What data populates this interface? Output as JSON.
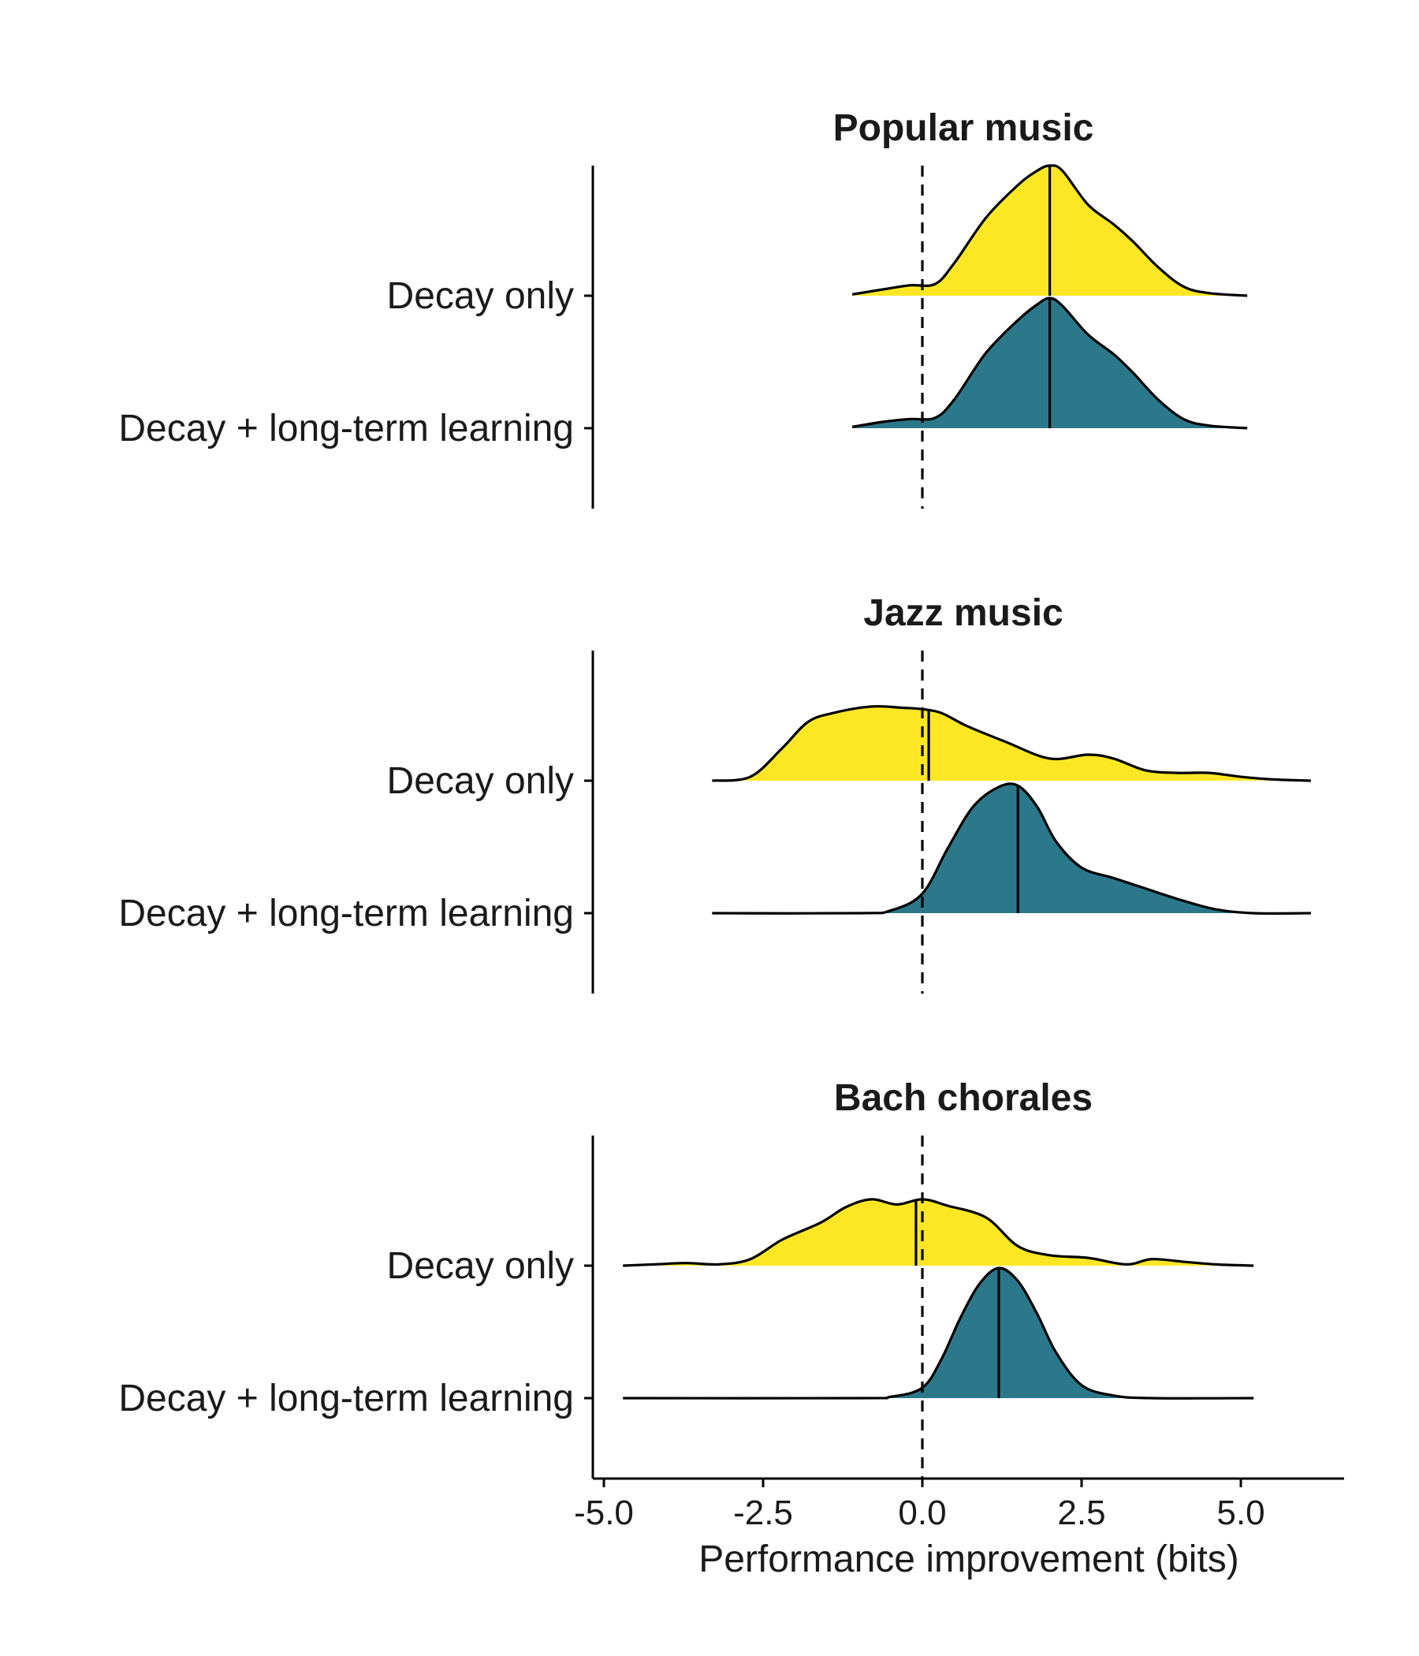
{
  "chart_data": {
    "type": "ridgeline",
    "xlabel": "Performance improvement (bits)",
    "xlim": [
      -5.0,
      6.5
    ],
    "x_ticks": [
      "-5.0",
      "-2.5",
      "0.0",
      "2.5",
      "5.0"
    ],
    "x_tick_values": [
      -5.0,
      -2.5,
      0.0,
      2.5,
      5.0
    ],
    "reference_line_x": 0.0,
    "categories": [
      "Decay only",
      "Decay + long-term learning"
    ],
    "series_colors": {
      "Decay only": "#FDE725",
      "Decay + long-term learning": "#2B788A"
    },
    "panels": [
      {
        "title": "Popular music",
        "series": [
          {
            "name": "Decay only",
            "median": 2.0,
            "x": [
              -1.1,
              -0.6,
              -0.2,
              0.2,
              0.5,
              1.0,
              1.5,
              1.8,
              2.0,
              2.2,
              2.6,
              3.0,
              3.3,
              3.7,
              4.1,
              4.5,
              5.1
            ],
            "density": [
              0.01,
              0.05,
              0.08,
              0.09,
              0.25,
              0.6,
              0.85,
              0.96,
              1.0,
              0.96,
              0.7,
              0.55,
              0.42,
              0.22,
              0.07,
              0.02,
              0.0
            ]
          },
          {
            "name": "Decay + long-term learning",
            "median": 2.0,
            "x": [
              -1.1,
              -0.6,
              -0.2,
              0.2,
              0.5,
              1.0,
              1.5,
              1.8,
              2.0,
              2.2,
              2.6,
              3.0,
              3.3,
              3.7,
              4.1,
              4.5,
              5.1
            ],
            "density": [
              0.01,
              0.05,
              0.07,
              0.08,
              0.22,
              0.58,
              0.83,
              0.95,
              1.0,
              0.94,
              0.72,
              0.57,
              0.43,
              0.22,
              0.07,
              0.02,
              0.0
            ]
          }
        ]
      },
      {
        "title": "Jazz music",
        "series": [
          {
            "name": "Decay only",
            "median": 0.1,
            "x": [
              -3.3,
              -2.7,
              -2.2,
              -1.8,
              -1.4,
              -0.8,
              -0.3,
              0.0,
              0.3,
              0.7,
              1.3,
              2.0,
              2.6,
              3.0,
              3.5,
              4.0,
              4.5,
              5.0,
              5.5,
              6.1
            ],
            "density": [
              0.0,
              0.03,
              0.25,
              0.45,
              0.52,
              0.57,
              0.56,
              0.55,
              0.52,
              0.42,
              0.3,
              0.17,
              0.2,
              0.17,
              0.08,
              0.06,
              0.06,
              0.03,
              0.01,
              0.0
            ]
          },
          {
            "name": "Decay + long-term learning",
            "median": 1.5,
            "x": [
              -3.3,
              -1.0,
              -0.5,
              0.0,
              0.4,
              0.8,
              1.2,
              1.5,
              1.8,
              2.1,
              2.5,
              3.0,
              3.5,
              4.0,
              4.6,
              5.2,
              6.1
            ],
            "density": [
              0.0,
              0.0,
              0.02,
              0.15,
              0.5,
              0.82,
              0.97,
              0.98,
              0.82,
              0.55,
              0.35,
              0.27,
              0.19,
              0.11,
              0.03,
              0.0,
              0.0
            ]
          }
        ]
      },
      {
        "title": "Bach chorales",
        "series": [
          {
            "name": "Decay only",
            "median": -0.1,
            "x": [
              -4.7,
              -4.2,
              -3.7,
              -3.2,
              -2.7,
              -2.2,
              -1.6,
              -1.2,
              -0.8,
              -0.4,
              0.0,
              0.4,
              1.0,
              1.5,
              2.0,
              2.6,
              3.2,
              3.6,
              4.1,
              4.6,
              5.2
            ],
            "density": [
              0.0,
              0.01,
              0.02,
              0.01,
              0.05,
              0.2,
              0.33,
              0.45,
              0.51,
              0.47,
              0.51,
              0.46,
              0.37,
              0.15,
              0.08,
              0.06,
              0.01,
              0.05,
              0.03,
              0.01,
              0.0
            ]
          },
          {
            "name": "Decay + long-term learning",
            "median": 1.2,
            "x": [
              -4.7,
              -1.0,
              -0.5,
              0.0,
              0.3,
              0.6,
              0.9,
              1.2,
              1.5,
              1.8,
              2.1,
              2.5,
              3.0,
              3.6,
              5.2
            ],
            "density": [
              0.0,
              0.0,
              0.01,
              0.08,
              0.3,
              0.62,
              0.88,
              1.0,
              0.9,
              0.65,
              0.35,
              0.1,
              0.02,
              0.0,
              0.0
            ]
          }
        ]
      }
    ]
  }
}
